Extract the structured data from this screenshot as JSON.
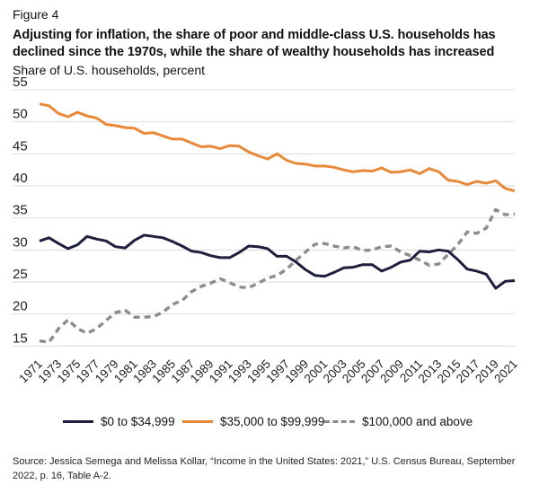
{
  "figure_label": "Figure 4",
  "title": "Adjusting for inflation, the share of poor and middle-class U.S. households has declined since the 1970s, while the share of wealthy households has increased",
  "subtitle": "Share of U.S. households, percent",
  "source": "Source: Jessica Semega and Melissa Kollar, “Income in the United States: 2021,” U.S. Census Bureau, September 2022, p. 16, Table A-2.",
  "colors": {
    "low": "#1d1f3d",
    "middle": "#e8893a",
    "high": "#8c8c8c",
    "grid": "#d9d9d9"
  },
  "chart_data": {
    "type": "line",
    "x": [
      1971,
      1972,
      1973,
      1974,
      1975,
      1976,
      1977,
      1978,
      1979,
      1980,
      1981,
      1982,
      1983,
      1984,
      1985,
      1986,
      1987,
      1988,
      1989,
      1990,
      1991,
      1992,
      1993,
      1994,
      1995,
      1996,
      1997,
      1998,
      1999,
      2000,
      2001,
      2002,
      2003,
      2004,
      2005,
      2006,
      2007,
      2008,
      2009,
      2010,
      2011,
      2012,
      2013,
      2014,
      2015,
      2016,
      2017,
      2018,
      2019,
      2020,
      2021
    ],
    "x_tick_labels": [
      "1971",
      "1973",
      "1975",
      "1977",
      "1979",
      "1981",
      "1983",
      "1985",
      "1987",
      "1989",
      "1991",
      "1993",
      "1995",
      "1997",
      "1999",
      "2001",
      "2003",
      "2005",
      "2007",
      "2009",
      "2011",
      "2013",
      "2015",
      "2017",
      "2019",
      "2021"
    ],
    "x_ticks": [
      1971,
      1973,
      1975,
      1977,
      1979,
      1981,
      1983,
      1985,
      1987,
      1989,
      1991,
      1993,
      1995,
      1997,
      1999,
      2001,
      2003,
      2005,
      2007,
      2009,
      2011,
      2013,
      2015,
      2017,
      2019,
      2021
    ],
    "y_ticks": [
      15,
      20,
      25,
      30,
      35,
      40,
      45,
      50,
      55
    ],
    "ylim": [
      13.5,
      55
    ],
    "grid": "horizontal",
    "legend_position": "bottom",
    "series": [
      {
        "name": "$0 to $34,999",
        "style": "solid",
        "color_key": "low",
        "values": [
          31.4,
          31.9,
          31.0,
          30.2,
          30.8,
          32.1,
          31.7,
          31.4,
          30.5,
          30.3,
          31.5,
          32.3,
          32.1,
          31.9,
          31.3,
          30.6,
          29.8,
          29.6,
          29.1,
          28.8,
          28.8,
          29.6,
          30.6,
          30.5,
          30.2,
          29.0,
          29.0,
          28.1,
          26.9,
          26.0,
          25.9,
          26.5,
          27.2,
          27.3,
          27.7,
          27.7,
          26.7,
          27.3,
          28.1,
          28.4,
          29.8,
          29.7,
          30.0,
          29.8,
          28.5,
          27.0,
          26.7,
          26.2,
          24.0,
          25.1,
          25.2
        ]
      },
      {
        "name": "$35,000 to $99,999",
        "style": "solid",
        "color_key": "middle",
        "values": [
          52.8,
          52.5,
          51.3,
          50.8,
          51.5,
          50.9,
          50.6,
          49.6,
          49.4,
          49.1,
          49.0,
          48.2,
          48.3,
          47.8,
          47.3,
          47.3,
          46.7,
          46.1,
          46.2,
          45.8,
          46.3,
          46.2,
          45.3,
          44.7,
          44.2,
          45.0,
          44.0,
          43.5,
          43.4,
          43.1,
          43.1,
          42.9,
          42.5,
          42.2,
          42.4,
          42.3,
          42.8,
          42.1,
          42.2,
          42.5,
          41.9,
          42.7,
          42.2,
          40.9,
          40.7,
          40.2,
          40.7,
          40.4,
          40.8,
          39.6,
          39.2
        ]
      },
      {
        "name": "$100,000 and above",
        "style": "dashed",
        "color_key": "high",
        "values": [
          15.8,
          15.6,
          17.7,
          19.1,
          17.7,
          17.0,
          17.7,
          19.0,
          20.2,
          20.6,
          19.5,
          19.5,
          19.6,
          20.3,
          21.5,
          22.1,
          23.5,
          24.3,
          24.8,
          25.5,
          24.9,
          24.2,
          24.1,
          24.8,
          25.6,
          26.0,
          27.0,
          28.4,
          29.7,
          30.9,
          31.0,
          30.6,
          30.3,
          30.5,
          29.9,
          30.0,
          30.5,
          30.6,
          29.7,
          29.1,
          28.4,
          27.6,
          27.8,
          29.3,
          30.8,
          32.8,
          32.6,
          33.4,
          36.3,
          35.5,
          35.6
        ]
      }
    ]
  }
}
